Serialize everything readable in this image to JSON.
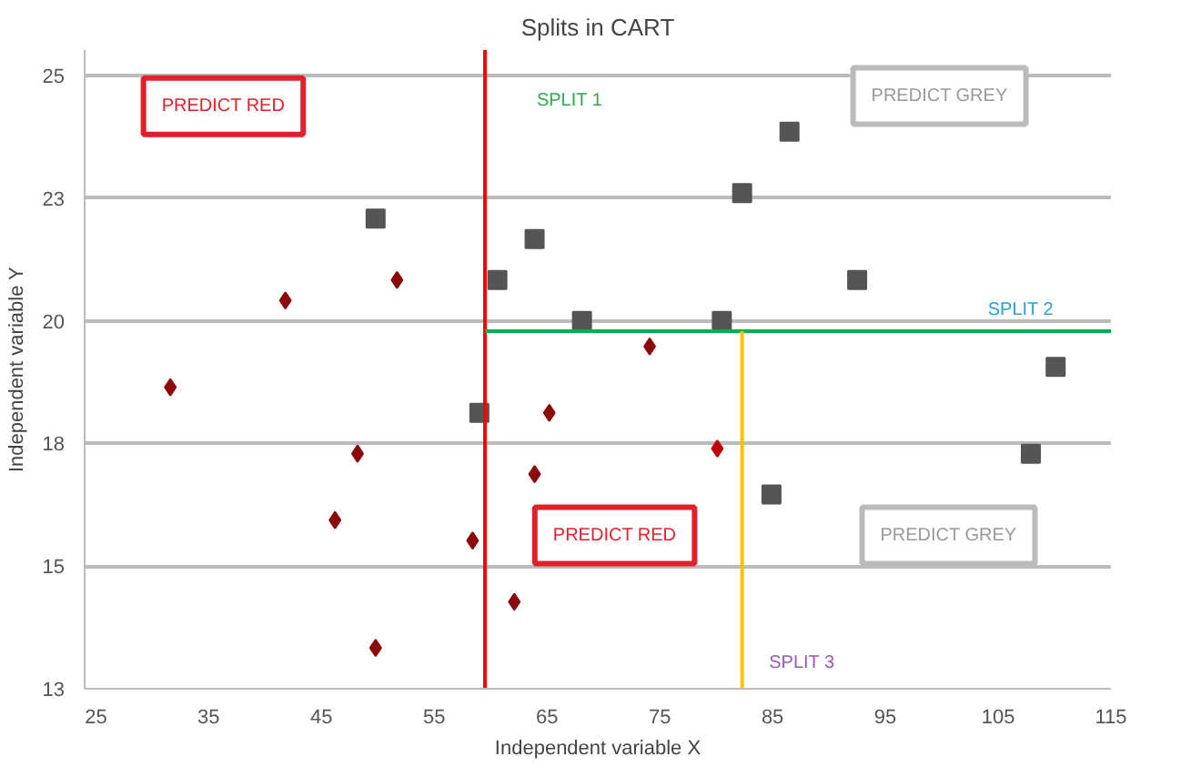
{
  "chart_data": {
    "type": "scatter",
    "title": "Splits in CART",
    "xlabel": "Independent variable X",
    "ylabel": "Independent variable Y",
    "xlim": [
      24,
      115
    ],
    "xticks": [
      25,
      35,
      45,
      55,
      65,
      75,
      85,
      95,
      105,
      115
    ],
    "ylim": [
      13,
      25.5
    ],
    "yticks": [
      {
        "value": 13,
        "label": "13"
      },
      {
        "value": 15.4,
        "label": "15"
      },
      {
        "value": 17.8,
        "label": "18"
      },
      {
        "value": 20.2,
        "label": "20"
      },
      {
        "value": 22.6,
        "label": "23"
      },
      {
        "value": 25,
        "label": "25"
      }
    ],
    "grid": "y",
    "series": [
      {
        "color": "#8b0a0a",
        "marker": "diamond",
        "x": [
          31.6,
          41.8,
          51.7,
          48.2,
          46.2,
          58.4,
          49.8,
          65.2,
          63.9,
          62.1,
          74.1
        ],
        "values": [
          18.9,
          20.6,
          21.0,
          17.6,
          16.3,
          15.9,
          13.8,
          18.4,
          17.2,
          14.7,
          19.7
        ]
      },
      {
        "color": "#c00000",
        "marker": "diamond",
        "x": [
          80.1
        ],
        "values": [
          17.7
        ]
      },
      {
        "color": "#555555",
        "marker": "square",
        "x": [
          49.8,
          63.9,
          60.6,
          68.1,
          86.5,
          82.3,
          92.5,
          80.5,
          110.1,
          59.0,
          107.9,
          84.9
        ],
        "values": [
          22.2,
          21.8,
          21.0,
          20.2,
          23.9,
          22.7,
          21.0,
          20.2,
          19.3,
          18.4,
          17.6,
          16.8
        ]
      },
      {
        "type": "line",
        "color": "#ff0000",
        "marker": "none",
        "x": [
          59.5,
          59.5
        ],
        "values": [
          13,
          25.5
        ]
      },
      {
        "type": "line",
        "color": "#00b050",
        "marker": "none",
        "x": [
          59.5,
          115
        ],
        "values": [
          20.0,
          20.0
        ]
      },
      {
        "type": "line",
        "color": "#ffc000",
        "marker": "none",
        "x": [
          82.3,
          82.3
        ],
        "values": [
          13,
          20.0
        ]
      }
    ],
    "annotations": [
      "PREDICT RED",
      "SPLIT 1",
      "PREDICT GREY",
      "SPLIT 2",
      "PREDICT RED",
      "PREDICT GREY",
      "SPLIT 3"
    ]
  }
}
